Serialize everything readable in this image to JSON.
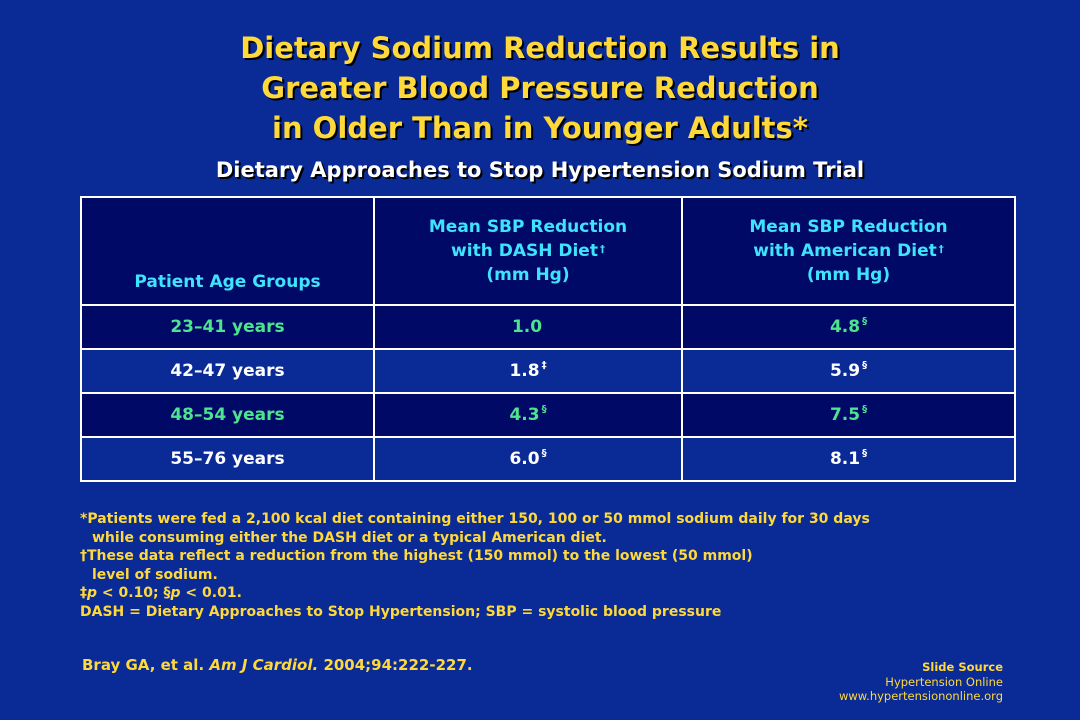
{
  "title": {
    "line1": "Dietary Sodium Reduction Results in",
    "line2": "Greater Blood Pressure Reduction",
    "line3": "in Older Than in Younger Adults*"
  },
  "subtitle": "Dietary Approaches to Stop Hypertension Sodium Trial",
  "table": {
    "headers": {
      "col1": "Patient Age Groups",
      "col2_line1": "Mean SBP Reduction",
      "col2_line2": "with DASH Diet",
      "col2_mark": "†",
      "col2_line3": "(mm Hg)",
      "col3_line1": "Mean SBP Reduction",
      "col3_line2": "with American Diet",
      "col3_mark": "†",
      "col3_line3": "(mm Hg)"
    },
    "rows": [
      {
        "age": "23–41 years",
        "dash": "1.0",
        "dash_mark": "",
        "american": "4.8",
        "american_mark": "§"
      },
      {
        "age": "42–47 years",
        "dash": "1.8",
        "dash_mark": "‡",
        "american": "5.9",
        "american_mark": "§"
      },
      {
        "age": "48–54 years",
        "dash": "4.3",
        "dash_mark": "§",
        "american": "7.5",
        "american_mark": "§"
      },
      {
        "age": "55–76 years",
        "dash": "6.0",
        "dash_mark": "§",
        "american": "8.1",
        "american_mark": "§"
      }
    ]
  },
  "footnotes": {
    "line1": "*Patients were fed a 2,100 kcal diet containing either 150, 100 or 50 mmol sodium daily for 30 days",
    "line2": "while consuming either the DASH diet or a typical American diet.",
    "line3": "†These data reflect a reduction from the highest (150 mmol) to the lowest (50 mmol)",
    "line4": "level of sodium.",
    "line5_a": "‡",
    "line5_p1": "p",
    "line5_b": " < 0.10; §",
    "line5_p2": "p",
    "line5_c": " < 0.01.",
    "line6": "DASH = Dietary Approaches to Stop Hypertension; SBP = systolic blood pressure"
  },
  "citation": {
    "authors": "Bray GA, et al.",
    "journal": "Am J Cardiol.",
    "ref": "2004;94:222-227."
  },
  "source": {
    "label": "Slide Source",
    "name": "Hypertension Online",
    "url": "www.hypertensiononline.org"
  },
  "colors": {
    "background": "#0a2a96",
    "dark_row": "#000a66",
    "title": "#ffd93a",
    "header_text": "#3fe3ff",
    "green_text": "#4de38f",
    "white_text": "#ffffff"
  }
}
